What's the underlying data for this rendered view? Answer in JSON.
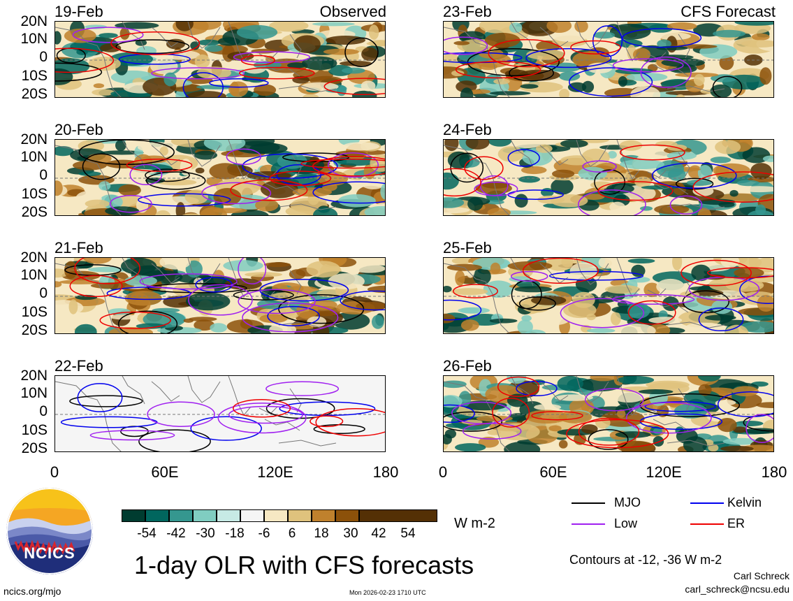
{
  "figure": {
    "title": "1-day OLR with CFS forecasts",
    "units": "W m-2",
    "contour_note": "Contours at -12, -36 W m-2",
    "author": "Carl Schreck",
    "email": "carl_schreck@ncsu.edu",
    "url": "ncics.org/mjo",
    "timestamp": "Mon 2026-02-23 1710 UTC",
    "logo_text": "NCICS"
  },
  "panels_observed": {
    "header": "Observed",
    "dates": [
      "19-Feb",
      "20-Feb",
      "21-Feb",
      "22-Feb"
    ]
  },
  "panels_forecast": {
    "header": "CFS Forecast",
    "dates": [
      "23-Feb",
      "24-Feb",
      "25-Feb",
      "26-Feb"
    ]
  },
  "axes": {
    "lat_ticks": [
      "20N",
      "10N",
      "0",
      "10S",
      "20S"
    ],
    "lon_ticks": [
      "0",
      "60E",
      "120E",
      "180"
    ],
    "lon_range": [
      0,
      180
    ],
    "lat_range": [
      -20,
      20
    ]
  },
  "colorbar": {
    "labels": [
      "-54",
      "-42",
      "-30",
      "-18",
      "-6",
      "6",
      "18",
      "30",
      "42",
      "54"
    ],
    "colors": [
      "#003c30",
      "#01665e",
      "#35978f",
      "#80cdc1",
      "#c7eae5",
      "#f5f5f5",
      "#f6e8c3",
      "#dfc27d",
      "#bf812d",
      "#8c510a",
      "#543005"
    ]
  },
  "legend": {
    "items": [
      {
        "label": "MJO",
        "color": "#000000"
      },
      {
        "label": "Kelvin",
        "color": "#0000ee"
      },
      {
        "label": "Low",
        "color": "#a020f0"
      },
      {
        "label": "ER",
        "color": "#ee0000"
      }
    ]
  }
}
